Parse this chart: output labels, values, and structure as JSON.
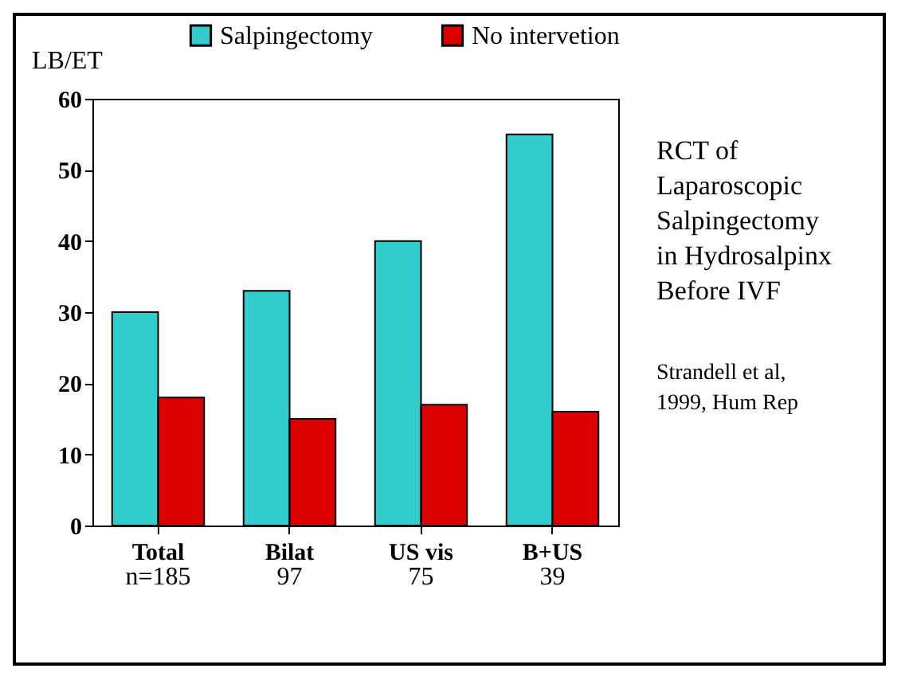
{
  "chart_data": {
    "type": "bar",
    "title": "RCT of Laparoscopic Salpingectomy in Hydrosalpinx Before IVF",
    "ylabel": "LB/ET",
    "categories": [
      "Total",
      "Bilat",
      "US vis",
      "B+US"
    ],
    "series": [
      {
        "name": "Salpingectomy",
        "color": "#33cccc",
        "values": [
          30,
          33,
          40,
          55
        ]
      },
      {
        "name": "No intervetion",
        "color": "#dd0000",
        "values": [
          18,
          15,
          17,
          16
        ]
      }
    ],
    "ylim": [
      0,
      60
    ],
    "yticks": [
      0,
      10,
      20,
      30,
      40,
      50,
      60
    ],
    "grid": false,
    "legend": "top",
    "annotations": [
      "n=185",
      "97",
      "75",
      "39",
      "Strandell et al, 1999, Hum Rep"
    ]
  }
}
